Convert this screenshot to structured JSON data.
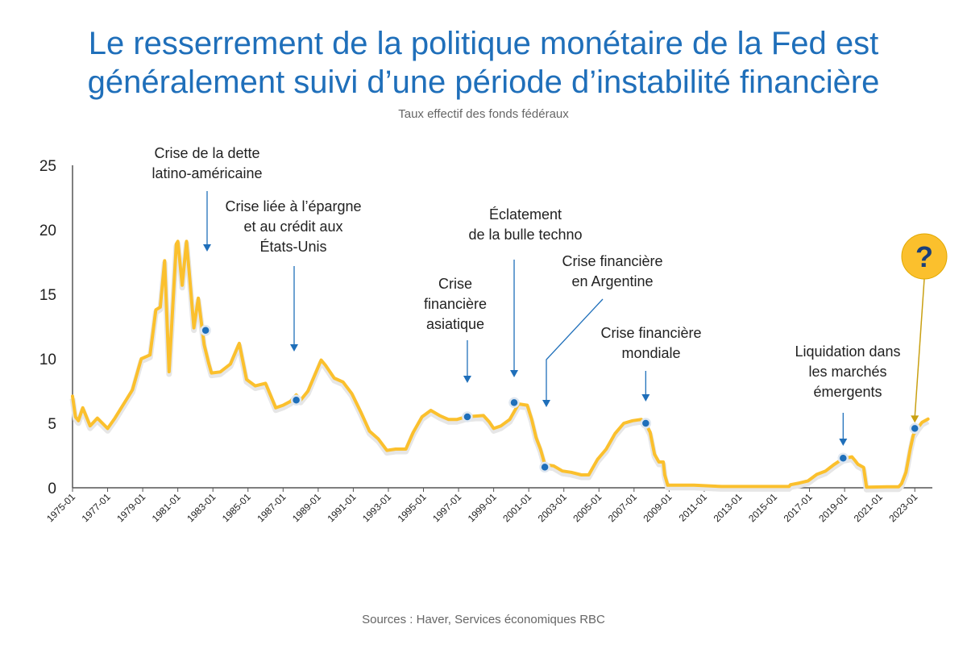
{
  "title_lines": [
    "Le resserrement de la politique monétaire de la Fed est",
    "généralement suivi d’une période d’instabilité financière"
  ],
  "subtitle": "Taux effectif des fonds fédéraux",
  "source": "Sources : Haver, Services économiques RBC",
  "colors": {
    "title": "#1f6fba",
    "line": "#fbc02d",
    "marker": "#1f6fba",
    "question": "#fbc02d"
  },
  "chart_data": {
    "type": "line",
    "title": "Le resserrement de la politique monétaire de la Fed est généralement suivi d’une période d’instabilité financière",
    "subtitle": "Taux effectif des fonds fédéraux",
    "xlabel": "",
    "ylabel": "",
    "ylim": [
      0,
      25
    ],
    "xlim": [
      "1975-01",
      "2023-12"
    ],
    "yticks": [
      0,
      5,
      10,
      15,
      20,
      25
    ],
    "xticks": [
      "1975-01",
      "1977-01",
      "1979-01",
      "1981-01",
      "1983-01",
      "1985-01",
      "1987-01",
      "1989-01",
      "1991-01",
      "1993-01",
      "1995-01",
      "1997-01",
      "1999-01",
      "2001-01",
      "2003-01",
      "2005-01",
      "2007-01",
      "2009-01",
      "2011-01",
      "2013-01",
      "2015-01",
      "2017-01",
      "2019-01",
      "2021-01",
      "2023-01"
    ],
    "grid": false,
    "legend": "none",
    "series": [
      {
        "x": [
          "1975-01",
          "1975-03",
          "1975-05",
          "1975-08",
          "1976-01",
          "1976-06",
          "1977-01",
          "1977-06",
          "1977-12",
          "1978-06",
          "1978-12",
          "1979-06",
          "1979-10",
          "1980-01",
          "1980-04",
          "1980-07",
          "1980-12",
          "1981-01",
          "1981-04",
          "1981-07",
          "1981-10",
          "1981-12",
          "1982-03",
          "1982-07",
          "1982-10",
          "1982-12",
          "1983-06",
          "1984-01",
          "1984-07",
          "1984-12",
          "1985-06",
          "1986-01",
          "1986-08",
          "1987-01",
          "1987-06",
          "1987-10",
          "1988-01",
          "1988-06",
          "1989-03",
          "1989-06",
          "1989-12",
          "1990-06",
          "1990-12",
          "1991-06",
          "1991-12",
          "1992-06",
          "1992-12",
          "1993-06",
          "1994-01",
          "1994-06",
          "1994-12",
          "1995-06",
          "1995-12",
          "1996-06",
          "1996-12",
          "1997-06",
          "1998-06",
          "1998-10",
          "1999-01",
          "1999-06",
          "1999-12",
          "2000-06",
          "2000-12",
          "2001-03",
          "2001-06",
          "2001-09",
          "2001-12",
          "2002-06",
          "2002-12",
          "2003-06",
          "2004-01",
          "2004-06",
          "2004-12",
          "2005-06",
          "2005-12",
          "2006-06",
          "2006-12",
          "2007-06",
          "2007-09",
          "2007-12",
          "2008-03",
          "2008-06",
          "2008-09",
          "2008-10",
          "2008-12",
          "2009-06",
          "2010-06",
          "2012-01",
          "2014-01",
          "2015-11",
          "2015-12",
          "2016-06",
          "2016-12",
          "2017-06",
          "2017-12",
          "2018-06",
          "2018-12",
          "2019-06",
          "2019-08",
          "2019-10",
          "2020-02",
          "2020-04",
          "2021-06",
          "2022-02",
          "2022-04",
          "2022-07",
          "2022-10",
          "2022-12",
          "2023-03",
          "2023-06",
          "2023-10"
        ],
        "y": [
          7.1,
          5.5,
          5.2,
          6.2,
          4.8,
          5.4,
          4.6,
          5.4,
          6.5,
          7.6,
          10.0,
          10.3,
          13.8,
          14.0,
          17.6,
          9.0,
          18.9,
          19.1,
          15.7,
          19.1,
          15.1,
          12.4,
          14.7,
          11.1,
          9.7,
          8.9,
          8.98,
          9.6,
          11.2,
          8.4,
          7.9,
          8.1,
          6.2,
          6.4,
          6.7,
          7.2,
          6.8,
          7.5,
          9.9,
          9.5,
          8.5,
          8.2,
          7.3,
          5.9,
          4.4,
          3.8,
          2.9,
          3.0,
          3.0,
          4.3,
          5.5,
          6.0,
          5.6,
          5.3,
          5.3,
          5.5,
          5.6,
          5.1,
          4.6,
          4.8,
          5.3,
          6.5,
          6.4,
          5.3,
          3.9,
          3.0,
          1.8,
          1.7,
          1.3,
          1.2,
          1.0,
          1.0,
          2.2,
          3.0,
          4.2,
          5.0,
          5.2,
          5.3,
          5.0,
          4.3,
          2.6,
          2.0,
          2.0,
          1.0,
          0.2,
          0.2,
          0.2,
          0.1,
          0.1,
          0.1,
          0.24,
          0.37,
          0.54,
          1.04,
          1.3,
          1.82,
          2.27,
          2.4,
          2.13,
          1.83,
          1.58,
          0.05,
          0.08,
          0.08,
          0.33,
          1.21,
          3.08,
          4.1,
          4.65,
          5.08,
          5.33
        ]
      }
    ],
    "annotations": [
      {
        "label": "Crise de la dette latino-américaine",
        "lines": [
          "Crise de la dette",
          "latino-américaine"
        ],
        "x": "1982-08",
        "y": 12.2
      },
      {
        "label": "Crise liée à l’épargne et au crédit aux États-Unis",
        "lines": [
          "Crise liée à l’épargne",
          "et au crédit aux",
          "États-Unis"
        ],
        "x": "1987-10",
        "y": 6.8
      },
      {
        "label": "Crise financière asiatique",
        "lines": [
          "Crise",
          "financière",
          "asiatique"
        ],
        "x": "1997-07",
        "y": 5.5
      },
      {
        "label": "Éclatement de la bulle techno",
        "lines": [
          "Éclatement",
          "de la bulle techno"
        ],
        "x": "2000-03",
        "y": 6.6
      },
      {
        "label": "Crise financière en Argentine",
        "lines": [
          "Crise financière",
          "en Argentine"
        ],
        "x": "2001-12",
        "y": 1.6
      },
      {
        "label": "Crise financière mondiale",
        "lines": [
          "Crise financière",
          "mondiale"
        ],
        "x": "2007-09",
        "y": 5.0
      },
      {
        "label": "Liquidation dans les marchés émergents",
        "lines": [
          "Liquidation dans",
          "les marchés",
          "émergents"
        ],
        "x": "2018-12",
        "y": 2.3
      },
      {
        "label": "?",
        "lines": [
          "?"
        ],
        "x": "2023-01",
        "y": 4.6
      }
    ]
  }
}
